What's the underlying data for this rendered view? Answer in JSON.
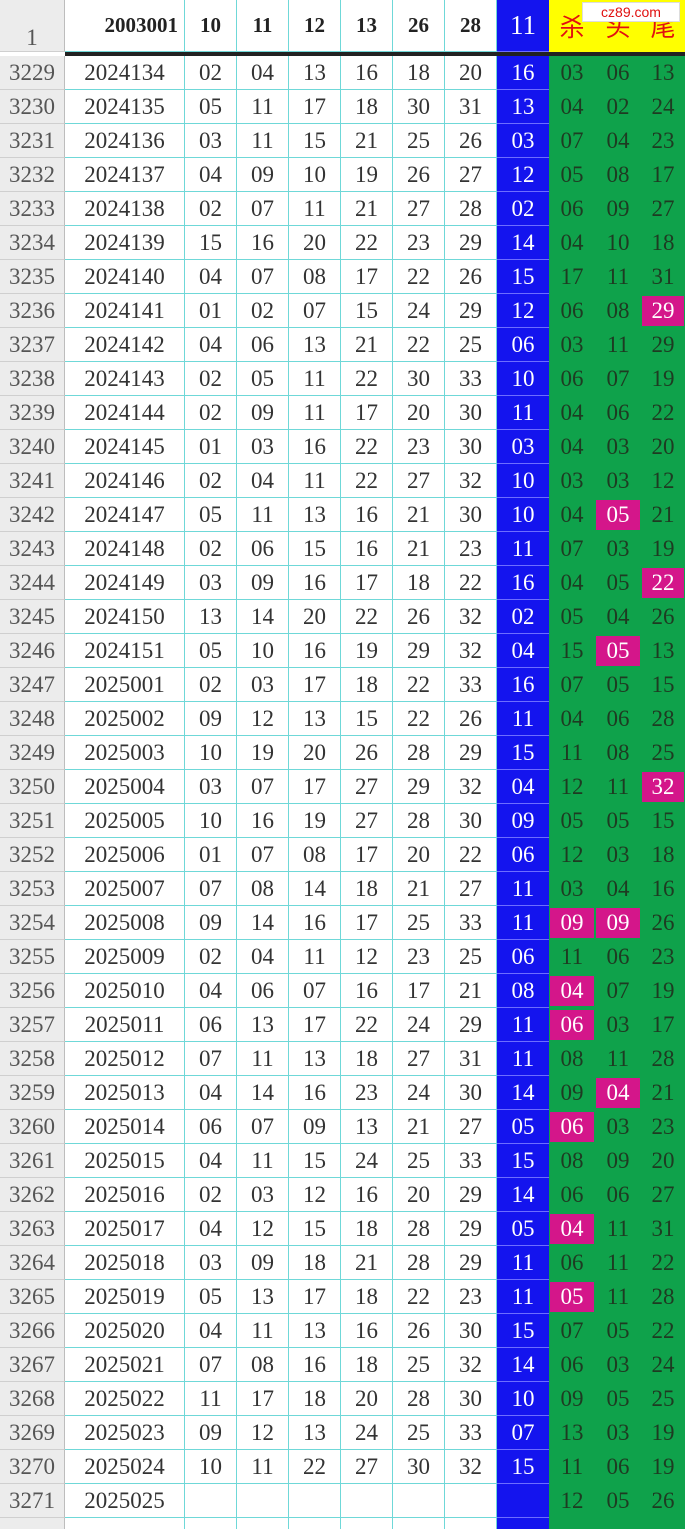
{
  "header": {
    "corner": "1",
    "cells": [
      "2003001",
      "10",
      "11",
      "12",
      "13",
      "26",
      "28",
      "11",
      "杀",
      "头",
      "尾"
    ],
    "watermark": "cz89.com"
  },
  "rows": [
    [
      "3229",
      "2024134",
      "02",
      "04",
      "13",
      "16",
      "18",
      "20",
      "16",
      "03",
      "06",
      "13"
    ],
    [
      "3230",
      "2024135",
      "05",
      "11",
      "17",
      "18",
      "30",
      "31",
      "13",
      "04",
      "02",
      "24"
    ],
    [
      "3231",
      "2024136",
      "03",
      "11",
      "15",
      "21",
      "25",
      "26",
      "03",
      "07",
      "04",
      "23"
    ],
    [
      "3232",
      "2024137",
      "04",
      "09",
      "10",
      "19",
      "26",
      "27",
      "12",
      "05",
      "08",
      "17"
    ],
    [
      "3233",
      "2024138",
      "02",
      "07",
      "11",
      "21",
      "27",
      "28",
      "02",
      "06",
      "09",
      "27"
    ],
    [
      "3234",
      "2024139",
      "15",
      "16",
      "20",
      "22",
      "23",
      "29",
      "14",
      "04",
      "10",
      "18"
    ],
    [
      "3235",
      "2024140",
      "04",
      "07",
      "08",
      "17",
      "22",
      "26",
      "15",
      "17",
      "11",
      "31"
    ],
    [
      "3236",
      "2024141",
      "01",
      "02",
      "07",
      "15",
      "24",
      "29",
      "12",
      "06",
      "08",
      "29"
    ],
    [
      "3237",
      "2024142",
      "04",
      "06",
      "13",
      "21",
      "22",
      "25",
      "06",
      "03",
      "11",
      "29"
    ],
    [
      "3238",
      "2024143",
      "02",
      "05",
      "11",
      "22",
      "30",
      "33",
      "10",
      "06",
      "07",
      "19"
    ],
    [
      "3239",
      "2024144",
      "02",
      "09",
      "11",
      "17",
      "20",
      "30",
      "11",
      "04",
      "06",
      "22"
    ],
    [
      "3240",
      "2024145",
      "01",
      "03",
      "16",
      "22",
      "23",
      "30",
      "03",
      "04",
      "03",
      "20"
    ],
    [
      "3241",
      "2024146",
      "02",
      "04",
      "11",
      "22",
      "27",
      "32",
      "10",
      "03",
      "03",
      "12"
    ],
    [
      "3242",
      "2024147",
      "05",
      "11",
      "13",
      "16",
      "21",
      "30",
      "10",
      "04",
      "05",
      "21"
    ],
    [
      "3243",
      "2024148",
      "02",
      "06",
      "15",
      "16",
      "21",
      "23",
      "11",
      "07",
      "03",
      "19"
    ],
    [
      "3244",
      "2024149",
      "03",
      "09",
      "16",
      "17",
      "18",
      "22",
      "16",
      "04",
      "05",
      "22"
    ],
    [
      "3245",
      "2024150",
      "13",
      "14",
      "20",
      "22",
      "26",
      "32",
      "02",
      "05",
      "04",
      "26"
    ],
    [
      "3246",
      "2024151",
      "05",
      "10",
      "16",
      "19",
      "29",
      "32",
      "04",
      "15",
      "05",
      "13"
    ],
    [
      "3247",
      "2025001",
      "02",
      "03",
      "17",
      "18",
      "22",
      "33",
      "16",
      "07",
      "05",
      "15"
    ],
    [
      "3248",
      "2025002",
      "09",
      "12",
      "13",
      "15",
      "22",
      "26",
      "11",
      "04",
      "06",
      "28"
    ],
    [
      "3249",
      "2025003",
      "10",
      "19",
      "20",
      "26",
      "28",
      "29",
      "15",
      "11",
      "08",
      "25"
    ],
    [
      "3250",
      "2025004",
      "03",
      "07",
      "17",
      "27",
      "29",
      "32",
      "04",
      "12",
      "11",
      "32"
    ],
    [
      "3251",
      "2025005",
      "10",
      "16",
      "19",
      "27",
      "28",
      "30",
      "09",
      "05",
      "05",
      "15"
    ],
    [
      "3252",
      "2025006",
      "01",
      "07",
      "08",
      "17",
      "20",
      "22",
      "06",
      "12",
      "03",
      "18"
    ],
    [
      "3253",
      "2025007",
      "07",
      "08",
      "14",
      "18",
      "21",
      "27",
      "11",
      "03",
      "04",
      "16"
    ],
    [
      "3254",
      "2025008",
      "09",
      "14",
      "16",
      "17",
      "25",
      "33",
      "11",
      "09",
      "09",
      "26"
    ],
    [
      "3255",
      "2025009",
      "02",
      "04",
      "11",
      "12",
      "23",
      "25",
      "06",
      "11",
      "06",
      "23"
    ],
    [
      "3256",
      "2025010",
      "04",
      "06",
      "07",
      "16",
      "17",
      "21",
      "08",
      "04",
      "07",
      "19"
    ],
    [
      "3257",
      "2025011",
      "06",
      "13",
      "17",
      "22",
      "24",
      "29",
      "11",
      "06",
      "03",
      "17"
    ],
    [
      "3258",
      "2025012",
      "07",
      "11",
      "13",
      "18",
      "27",
      "31",
      "11",
      "08",
      "11",
      "28"
    ],
    [
      "3259",
      "2025013",
      "04",
      "14",
      "16",
      "23",
      "24",
      "30",
      "14",
      "09",
      "04",
      "21"
    ],
    [
      "3260",
      "2025014",
      "06",
      "07",
      "09",
      "13",
      "21",
      "27",
      "05",
      "06",
      "03",
      "23"
    ],
    [
      "3261",
      "2025015",
      "04",
      "11",
      "15",
      "24",
      "25",
      "33",
      "15",
      "08",
      "09",
      "20"
    ],
    [
      "3262",
      "2025016",
      "02",
      "03",
      "12",
      "16",
      "20",
      "29",
      "14",
      "06",
      "06",
      "27"
    ],
    [
      "3263",
      "2025017",
      "04",
      "12",
      "15",
      "18",
      "28",
      "29",
      "05",
      "04",
      "11",
      "31"
    ],
    [
      "3264",
      "2025018",
      "03",
      "09",
      "18",
      "21",
      "28",
      "29",
      "11",
      "06",
      "11",
      "22"
    ],
    [
      "3265",
      "2025019",
      "05",
      "13",
      "17",
      "18",
      "22",
      "23",
      "11",
      "05",
      "11",
      "28"
    ],
    [
      "3266",
      "2025020",
      "04",
      "11",
      "13",
      "16",
      "26",
      "30",
      "15",
      "07",
      "05",
      "22"
    ],
    [
      "3267",
      "2025021",
      "07",
      "08",
      "16",
      "18",
      "25",
      "32",
      "14",
      "06",
      "03",
      "24"
    ],
    [
      "3268",
      "2025022",
      "11",
      "17",
      "18",
      "20",
      "28",
      "30",
      "10",
      "09",
      "05",
      "25"
    ],
    [
      "3269",
      "2025023",
      "09",
      "12",
      "13",
      "24",
      "25",
      "33",
      "07",
      "13",
      "03",
      "19"
    ],
    [
      "3270",
      "2025024",
      "10",
      "11",
      "22",
      "27",
      "30",
      "32",
      "15",
      "11",
      "06",
      "19"
    ],
    [
      "3271",
      "2025025",
      null,
      null,
      null,
      null,
      null,
      null,
      null,
      "12",
      "05",
      "26"
    ]
  ],
  "highlights": [
    [
      7,
      11
    ],
    [
      13,
      10
    ],
    [
      15,
      11
    ],
    [
      17,
      10
    ],
    [
      21,
      11
    ],
    [
      25,
      9
    ],
    [
      25,
      10
    ],
    [
      27,
      9
    ],
    [
      28,
      9
    ],
    [
      30,
      10
    ],
    [
      31,
      9
    ],
    [
      34,
      9
    ],
    [
      36,
      9
    ]
  ]
}
